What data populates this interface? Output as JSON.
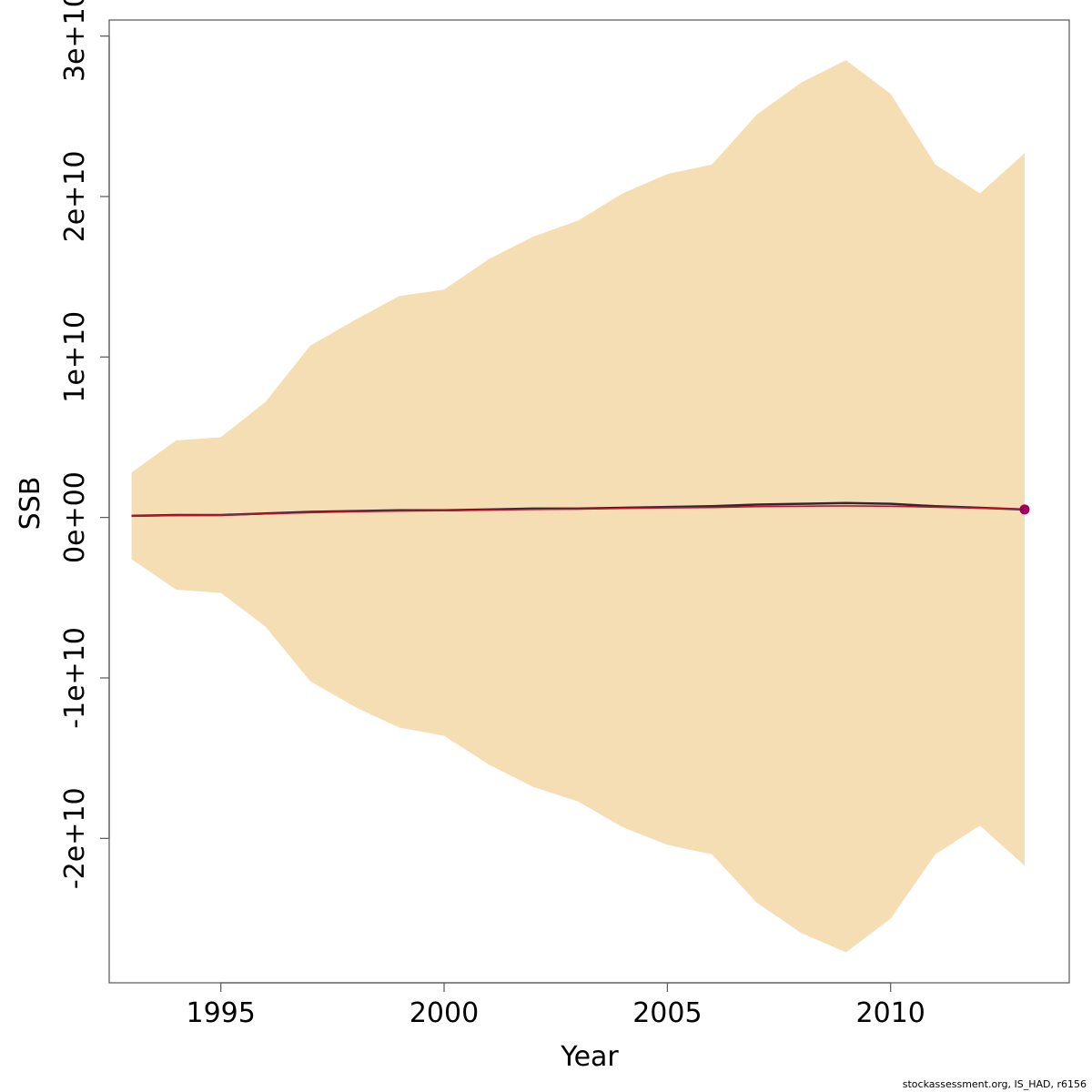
{
  "chart_data": {
    "type": "area",
    "title": "",
    "xlabel": "Year",
    "ylabel": "SSB",
    "xlim": [
      1992.5,
      2014
    ],
    "ylim": [
      -29000000000,
      31000000000
    ],
    "x_ticks": [
      1995,
      2000,
      2005,
      2010
    ],
    "x_tick_labels": [
      "1995",
      "2000",
      "2005",
      "2010"
    ],
    "y_ticks": [
      -20000000000,
      -10000000000,
      0,
      10000000000,
      20000000000,
      30000000000
    ],
    "y_tick_labels": [
      "-2e+10",
      "-1e+10",
      "0e+00",
      "1e+10",
      "2e+10",
      "3e+10"
    ],
    "grid": false,
    "x": [
      1993,
      1994,
      1995,
      1996,
      1997,
      1998,
      1999,
      2000,
      2001,
      2002,
      2003,
      2004,
      2005,
      2006,
      2007,
      2008,
      2009,
      2010,
      2011,
      2012,
      2013
    ],
    "band": {
      "color": "#F5DEB3",
      "upper": [
        2800000000,
        4800000000,
        5000000000,
        7200000000,
        10700000000,
        12300000000,
        13800000000,
        14200000000,
        16100000000,
        17500000000,
        18500000000,
        20200000000,
        21400000000,
        22000000000,
        25100000000,
        27100000000,
        28500000000,
        26400000000,
        22000000000,
        20200000000,
        22700000000
      ],
      "lower": [
        -2600000000,
        -4500000000,
        -4700000000,
        -6800000000,
        -10200000000,
        -11800000000,
        -13100000000,
        -13600000000,
        -15400000000,
        -16800000000,
        -17700000000,
        -19300000000,
        -20400000000,
        -21000000000,
        -24000000000,
        -25900000000,
        -27100000000,
        -25000000000,
        -21000000000,
        -19200000000,
        -21700000000
      ]
    },
    "series": [
      {
        "color": "#2B2A33",
        "values": [
          100000000,
          150000000,
          150000000,
          250000000,
          350000000,
          400000000,
          450000000,
          450000000,
          500000000,
          550000000,
          550000000,
          600000000,
          650000000,
          700000000,
          800000000,
          850000000,
          900000000,
          850000000,
          700000000,
          600000000,
          500000000
        ]
      },
      {
        "color": "#C8102E",
        "values": [
          80000000,
          120000000,
          140000000,
          220000000,
          300000000,
          360000000,
          400000000,
          420000000,
          460000000,
          500000000,
          520000000,
          560000000,
          600000000,
          620000000,
          680000000,
          700000000,
          720000000,
          700000000,
          640000000,
          580000000,
          520000000
        ]
      }
    ],
    "highlight_point": {
      "x": 2013,
      "y": 500000000,
      "color": "#A0005A"
    }
  },
  "footer_text": "stockassessment.org, IS_HAD, r6156"
}
